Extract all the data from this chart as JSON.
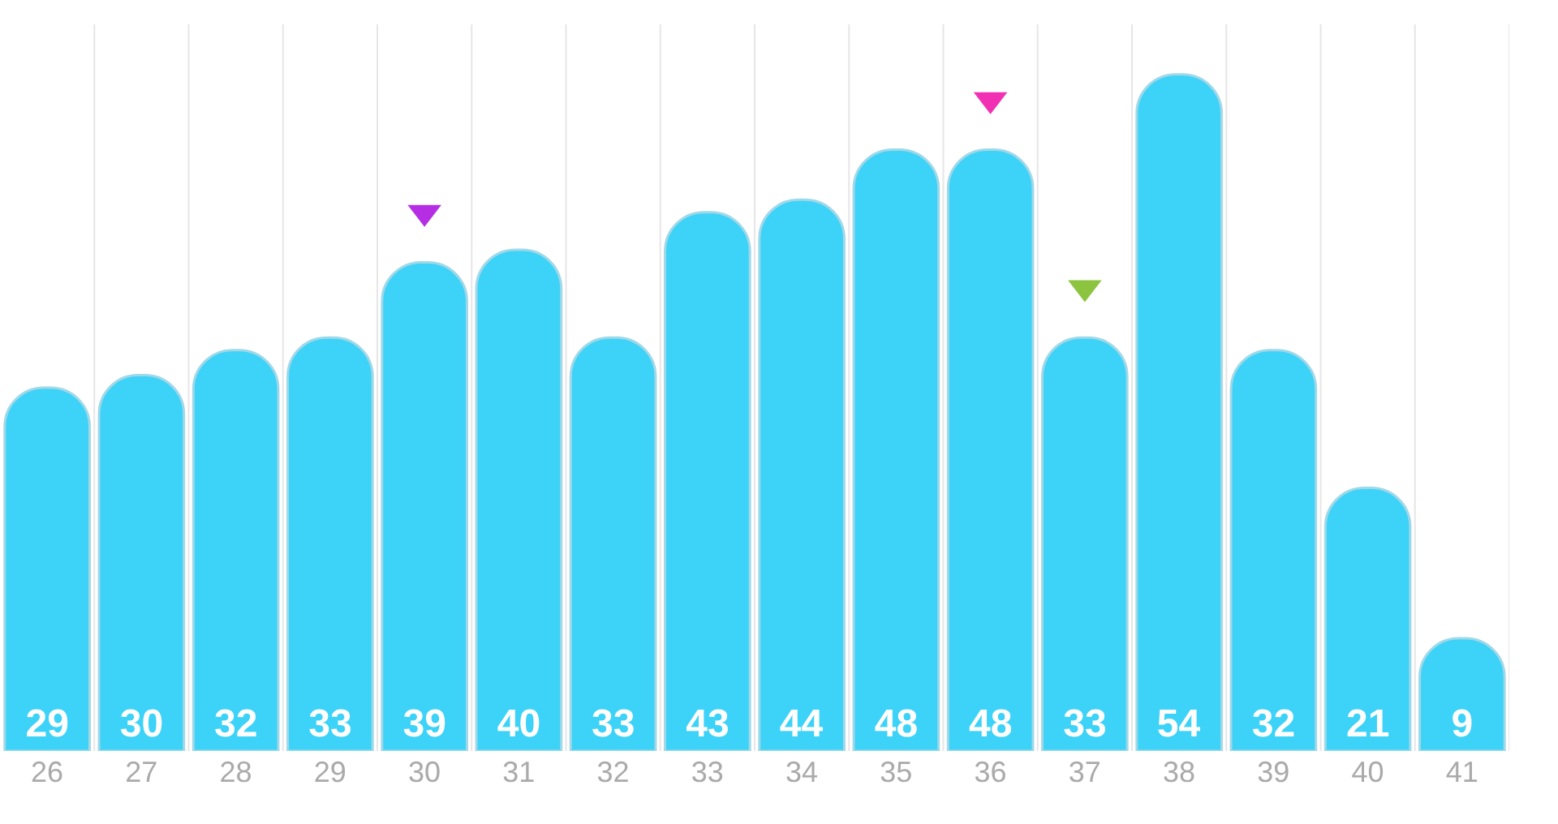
{
  "chart_data": {
    "type": "bar",
    "categories": [
      "26",
      "27",
      "28",
      "29",
      "30",
      "31",
      "32",
      "33",
      "34",
      "35",
      "36",
      "37",
      "38",
      "39",
      "40",
      "41"
    ],
    "series": [
      {
        "color": "#3dd2f7",
        "values": [
          29,
          30,
          32,
          33,
          39,
          40,
          33,
          43,
          44,
          48,
          48,
          33,
          54,
          32,
          21,
          9
        ],
        "value_labels": [
          "29",
          "30",
          "32",
          "33",
          "39",
          "40",
          "33",
          "43",
          "44",
          "48",
          "48",
          "33",
          "54",
          "32",
          "21",
          "9"
        ]
      },
      {
        "type": "scatter",
        "marker": "triangle",
        "x": [
          "30",
          "36",
          "37"
        ],
        "colors": [
          "#b52ee3",
          "#f230b4",
          "#8cc43f"
        ],
        "values": [
          43,
          52,
          37
        ]
      }
    ],
    "ylim": [
      0,
      58
    ],
    "tick_labels": "x",
    "grid": "x"
  }
}
